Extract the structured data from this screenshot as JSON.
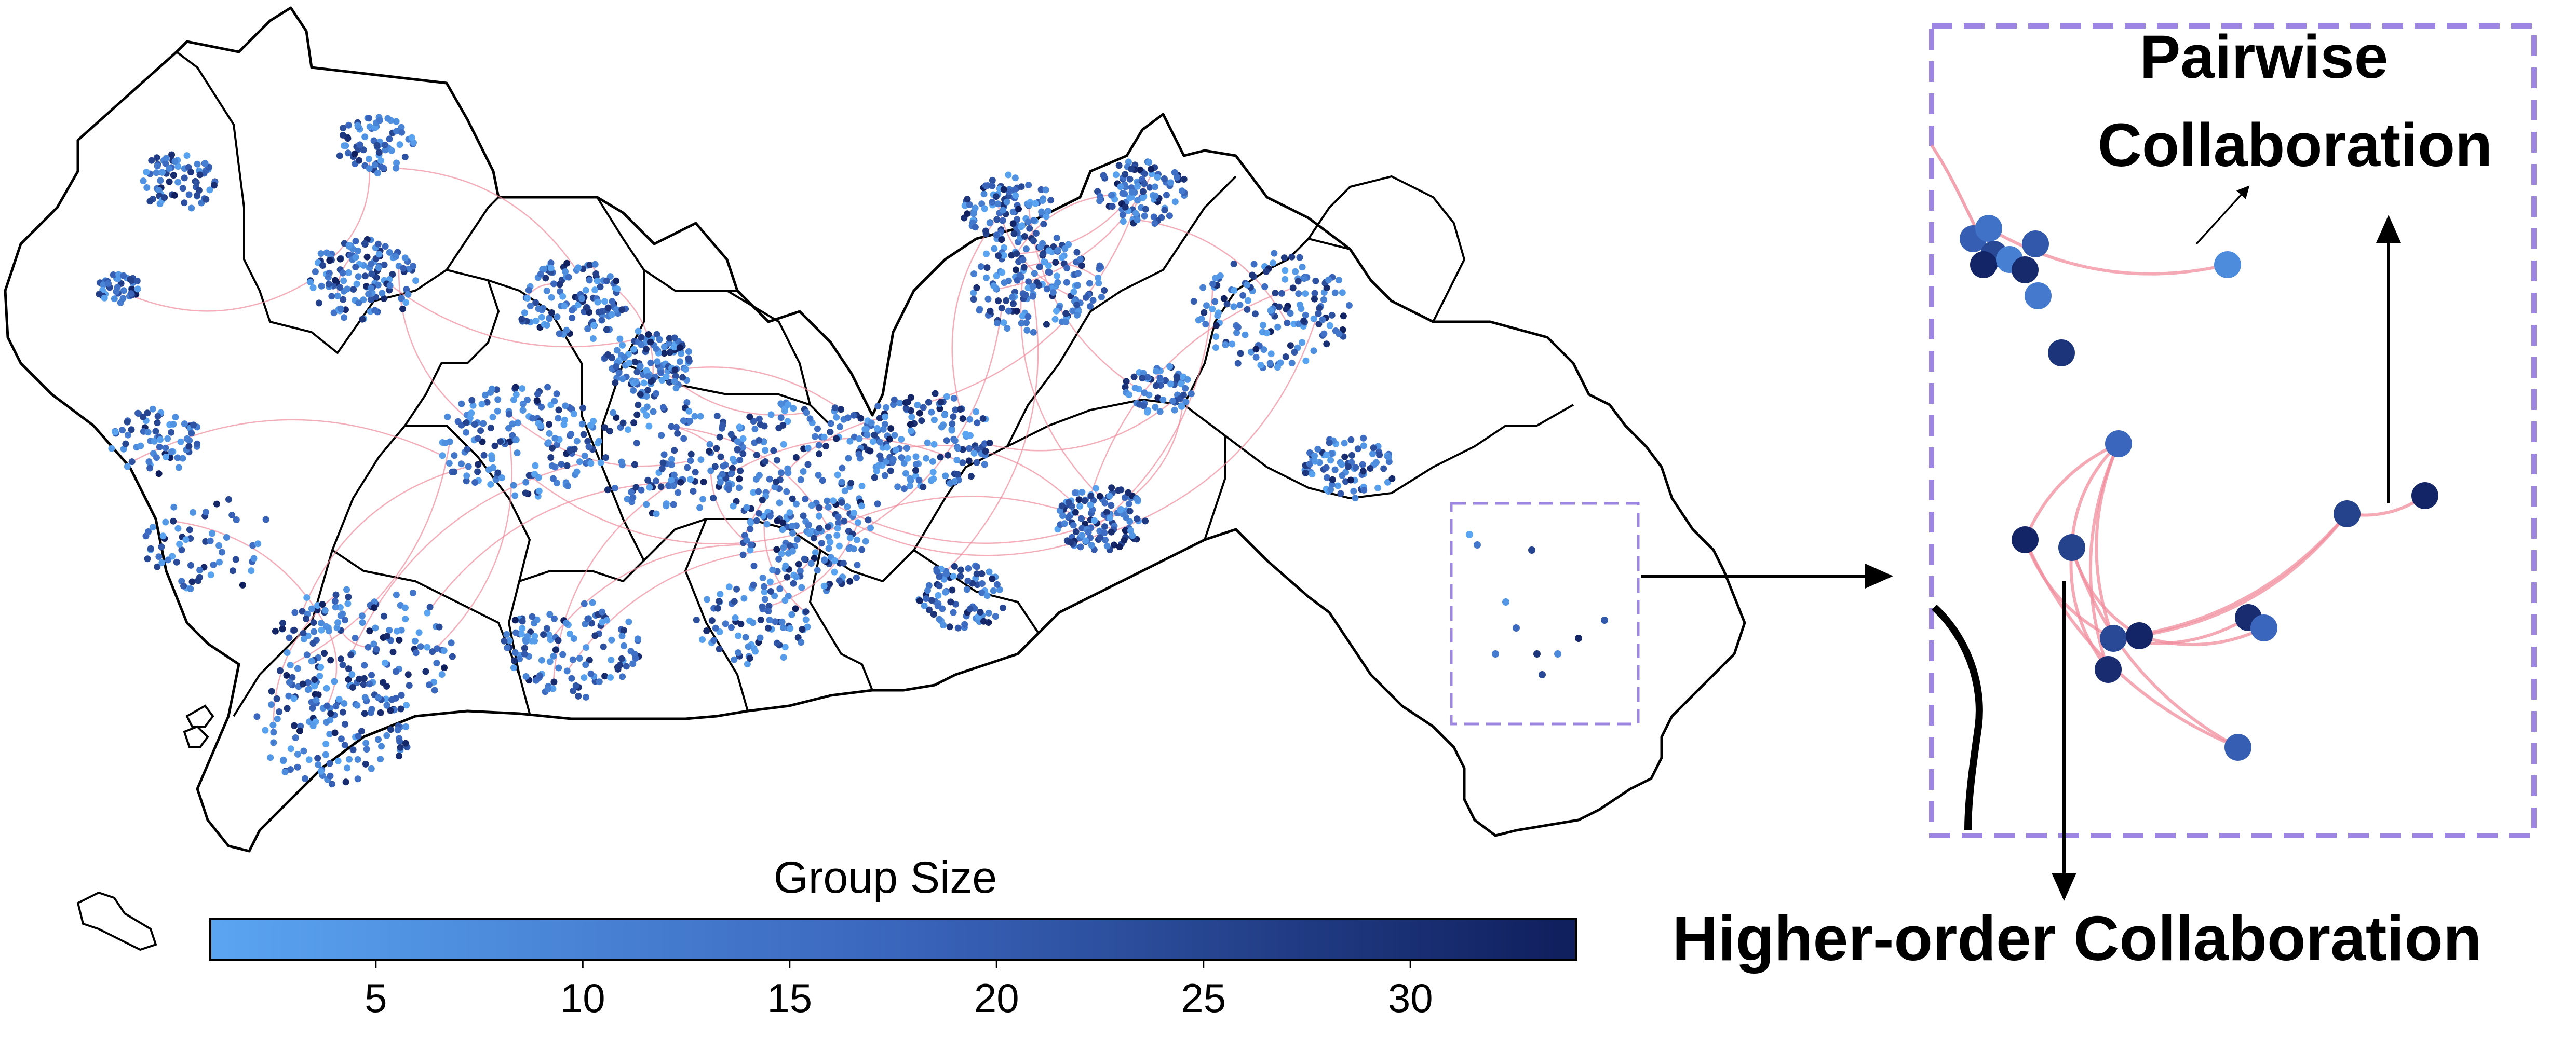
{
  "colorbar": {
    "title": "Group Size",
    "min": 1,
    "max": 34,
    "ticks": [
      "5",
      "10",
      "15",
      "20",
      "25",
      "30"
    ],
    "tick_values": [
      5,
      10,
      15,
      20,
      25,
      30
    ],
    "color_low": "#5aa5f2",
    "color_high": "#0f1e5c"
  },
  "labels": {
    "pairwise": [
      "Pairwise",
      "Collaboration"
    ],
    "higher_order": "Higher-order Collaboration"
  },
  "colors": {
    "boundary": "#000000",
    "link": "#f08c9c",
    "zoom_box": "#9d86e0"
  }
}
